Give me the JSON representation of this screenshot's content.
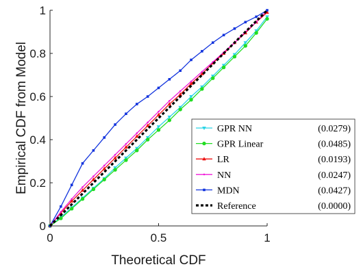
{
  "chart_data": {
    "type": "line",
    "xlabel": "Theoretical CDF",
    "ylabel": "Empirical CDF from Model",
    "xlim": [
      0,
      1
    ],
    "ylim": [
      0,
      1
    ],
    "xticks": [
      "0",
      "0.5",
      "1"
    ],
    "yticks": [
      "0",
      "0.2",
      "0.4",
      "0.6",
      "0.8",
      "1"
    ],
    "grid": false,
    "legend_position": "bottom-right",
    "series": [
      {
        "name": "GPR NN",
        "score": "(0.0279)",
        "color": "#2ad4e6",
        "marker": "triangle-down",
        "x": [
          0,
          0.05,
          0.1,
          0.15,
          0.2,
          0.25,
          0.3,
          0.35,
          0.4,
          0.45,
          0.5,
          0.55,
          0.6,
          0.65,
          0.7,
          0.75,
          0.8,
          0.85,
          0.9,
          0.95,
          1
        ],
        "y": [
          0,
          0.04,
          0.085,
          0.13,
          0.175,
          0.22,
          0.27,
          0.315,
          0.36,
          0.41,
          0.46,
          0.505,
          0.55,
          0.6,
          0.645,
          0.695,
          0.745,
          0.795,
          0.85,
          0.905,
          0.97
        ]
      },
      {
        "name": "GPR Linear",
        "score": "(0.0485)",
        "color": "#22dd22",
        "marker": "circle",
        "x": [
          0,
          0.05,
          0.1,
          0.15,
          0.2,
          0.25,
          0.3,
          0.35,
          0.4,
          0.45,
          0.5,
          0.55,
          0.6,
          0.65,
          0.7,
          0.75,
          0.8,
          0.85,
          0.9,
          0.95,
          1
        ],
        "y": [
          0,
          0.035,
          0.08,
          0.125,
          0.17,
          0.215,
          0.26,
          0.305,
          0.35,
          0.4,
          0.445,
          0.49,
          0.54,
          0.585,
          0.635,
          0.685,
          0.735,
          0.785,
          0.835,
          0.895,
          0.96
        ]
      },
      {
        "name": "LR",
        "score": "(0.0193)",
        "color": "#ee1111",
        "marker": "triangle-up",
        "x": [
          0,
          0.05,
          0.1,
          0.15,
          0.2,
          0.25,
          0.3,
          0.35,
          0.4,
          0.45,
          0.5,
          0.55,
          0.6,
          0.65,
          0.7,
          0.75,
          0.8,
          0.85,
          0.9,
          0.95,
          1
        ],
        "y": [
          0,
          0.06,
          0.115,
          0.165,
          0.215,
          0.265,
          0.315,
          0.365,
          0.415,
          0.465,
          0.515,
          0.565,
          0.61,
          0.66,
          0.705,
          0.755,
          0.8,
          0.85,
          0.895,
          0.945,
          0.99
        ]
      },
      {
        "name": "NN",
        "score": "(0.0247)",
        "color": "#f018d8",
        "marker": "point",
        "x": [
          0,
          0.05,
          0.1,
          0.15,
          0.2,
          0.25,
          0.3,
          0.35,
          0.4,
          0.45,
          0.5,
          0.55,
          0.6,
          0.65,
          0.7,
          0.75,
          0.8,
          0.85,
          0.9,
          0.95,
          1
        ],
        "y": [
          0,
          0.065,
          0.125,
          0.18,
          0.23,
          0.28,
          0.33,
          0.38,
          0.43,
          0.48,
          0.53,
          0.58,
          0.625,
          0.67,
          0.715,
          0.76,
          0.805,
          0.85,
          0.9,
          0.945,
          1
        ]
      },
      {
        "name": "MDN",
        "score": "(0.0427)",
        "color": "#1133dd",
        "marker": "square",
        "x": [
          0,
          0.05,
          0.1,
          0.15,
          0.2,
          0.25,
          0.3,
          0.35,
          0.4,
          0.45,
          0.5,
          0.55,
          0.6,
          0.65,
          0.7,
          0.75,
          0.8,
          0.85,
          0.9,
          0.95,
          1
        ],
        "y": [
          0,
          0.09,
          0.19,
          0.29,
          0.35,
          0.41,
          0.47,
          0.52,
          0.565,
          0.6,
          0.64,
          0.68,
          0.72,
          0.77,
          0.81,
          0.85,
          0.885,
          0.915,
          0.945,
          0.97,
          1
        ]
      },
      {
        "name": "Reference",
        "score": "(0.0000)",
        "color": "#000000",
        "marker": "none",
        "dashed": true,
        "x": [
          0,
          1
        ],
        "y": [
          0,
          1
        ]
      }
    ]
  }
}
